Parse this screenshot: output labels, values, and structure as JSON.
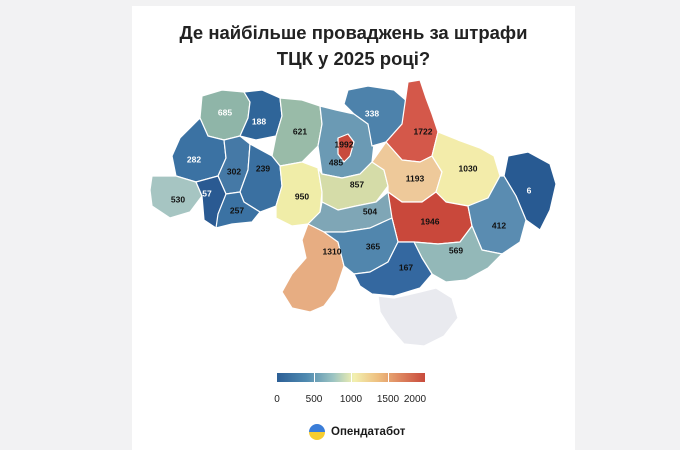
{
  "title_line1": "Де найбільше проваджень за штрафи",
  "title_line2": "ТЦК у 2025 році?",
  "brand": "Опендатабот",
  "legend": {
    "ticks": [
      "0",
      "500",
      "1000",
      "1500",
      "2000"
    ],
    "min": 0,
    "max": 2000,
    "colors": [
      "#2c5f96",
      "#f2f0b0",
      "#c84a3c"
    ]
  },
  "regions": [
    {
      "id": "volyn",
      "value": "685",
      "color": "#8fb5a8"
    },
    {
      "id": "rivne",
      "value": "188",
      "color": "#2f6599"
    },
    {
      "id": "zhytomyr",
      "value": "621",
      "color": "#99bba8"
    },
    {
      "id": "kyiv-oblast",
      "value": "485",
      "color": "#6b9ab4"
    },
    {
      "id": "kyiv-city",
      "value": "1992",
      "color": "#c84a3c"
    },
    {
      "id": "chernihiv",
      "value": "338",
      "color": "#4d82ab"
    },
    {
      "id": "sumy",
      "value": "1722",
      "color": "#d4584a"
    },
    {
      "id": "lviv",
      "value": "282",
      "color": "#3b72a3"
    },
    {
      "id": "ternopil",
      "value": "302",
      "color": "#4579a6"
    },
    {
      "id": "khmelnytskyi",
      "value": "239",
      "color": "#3a70a1"
    },
    {
      "id": "zakarpattia",
      "value": "530",
      "color": "#a6c5c2"
    },
    {
      "id": "ivano-frankivsk",
      "value": "57",
      "color": "#2a5a92"
    },
    {
      "id": "chernivtsi",
      "value": "257",
      "color": "#3b72a3"
    },
    {
      "id": "vinnytsia",
      "value": "950",
      "color": "#f0eda8"
    },
    {
      "id": "cherkasy",
      "value": "857",
      "color": "#d5dca8"
    },
    {
      "id": "poltava",
      "value": "1193",
      "color": "#eec99a"
    },
    {
      "id": "kharkiv",
      "value": "1030",
      "color": "#f3ecaa"
    },
    {
      "id": "luhansk",
      "value": "6",
      "color": "#285a92"
    },
    {
      "id": "kirovohrad",
      "value": "504",
      "color": "#7fa6b6"
    },
    {
      "id": "dnipropetrovsk",
      "value": "1946",
      "color": "#c9483b"
    },
    {
      "id": "donetsk",
      "value": "412",
      "color": "#5a8cb1"
    },
    {
      "id": "odesa",
      "value": "1310",
      "color": "#e7ad82"
    },
    {
      "id": "mykolaiv",
      "value": "365",
      "color": "#5186ad"
    },
    {
      "id": "zaporizhzhia",
      "value": "569",
      "color": "#93b8b8"
    },
    {
      "id": "kherson",
      "value": "167",
      "color": "#3468a0"
    },
    {
      "id": "crimea",
      "value": "",
      "color": "#e9eaef"
    }
  ]
}
